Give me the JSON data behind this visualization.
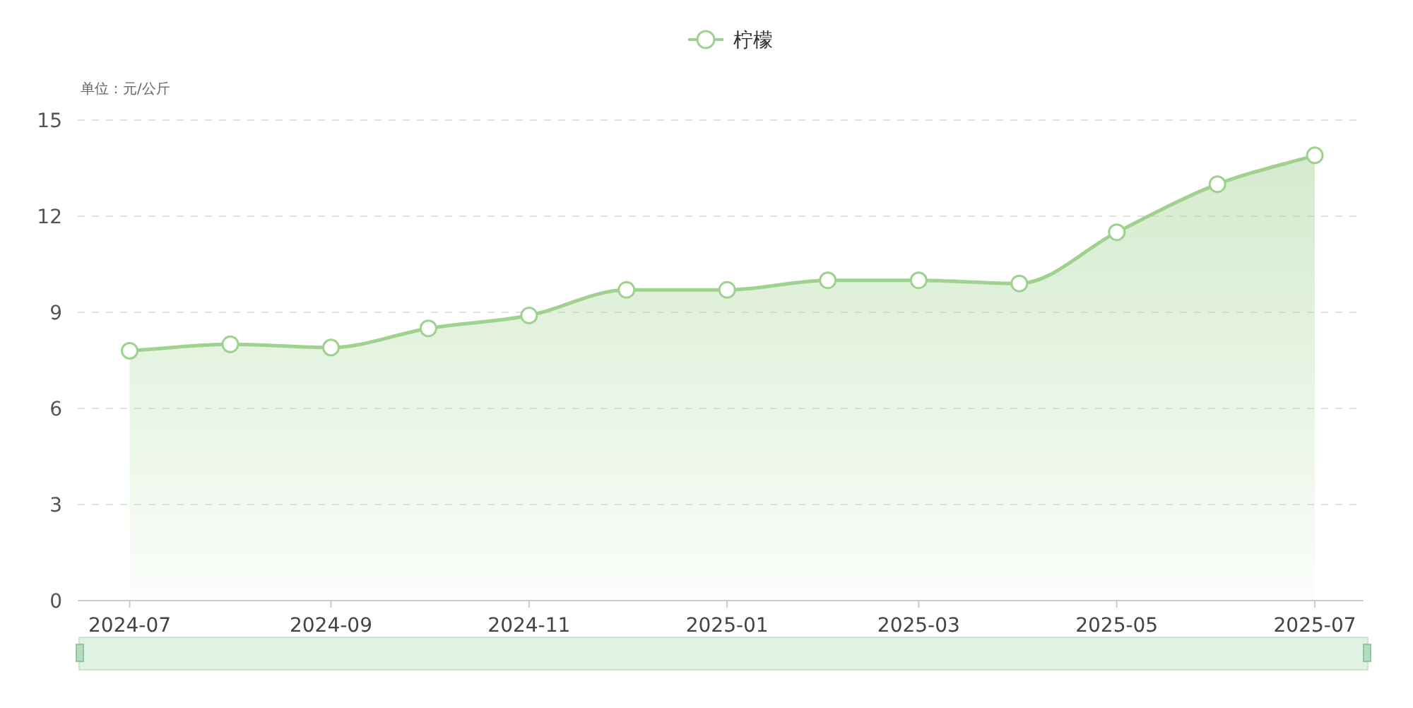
{
  "chart_data": {
    "type": "area",
    "ylabel": "单位：元/公斤",
    "x": [
      "2024-07",
      "2024-08",
      "2024-09",
      "2024-10",
      "2024-11",
      "2024-12",
      "2025-01",
      "2025-02",
      "2025-03",
      "2025-04",
      "2025-05",
      "2025-06",
      "2025-07"
    ],
    "series": [
      {
        "name": "柠檬",
        "color": "#9fd28f",
        "values": [
          7.8,
          8.0,
          7.9,
          8.5,
          8.9,
          9.7,
          9.7,
          10.0,
          10.0,
          9.9,
          11.5,
          13.0,
          13.9
        ]
      }
    ],
    "xlim": [
      "2024-06-15",
      "2025-07-16"
    ],
    "xticks": [
      "2024-07",
      "2024-09",
      "2024-11",
      "2025-01",
      "2025-03",
      "2025-05",
      "2025-07"
    ],
    "ylim": [
      0,
      15
    ],
    "yticks": [
      0,
      3,
      6,
      9,
      12,
      15
    ],
    "grid": "y",
    "legend": "top",
    "marker": "circle",
    "line_style": "solid"
  }
}
